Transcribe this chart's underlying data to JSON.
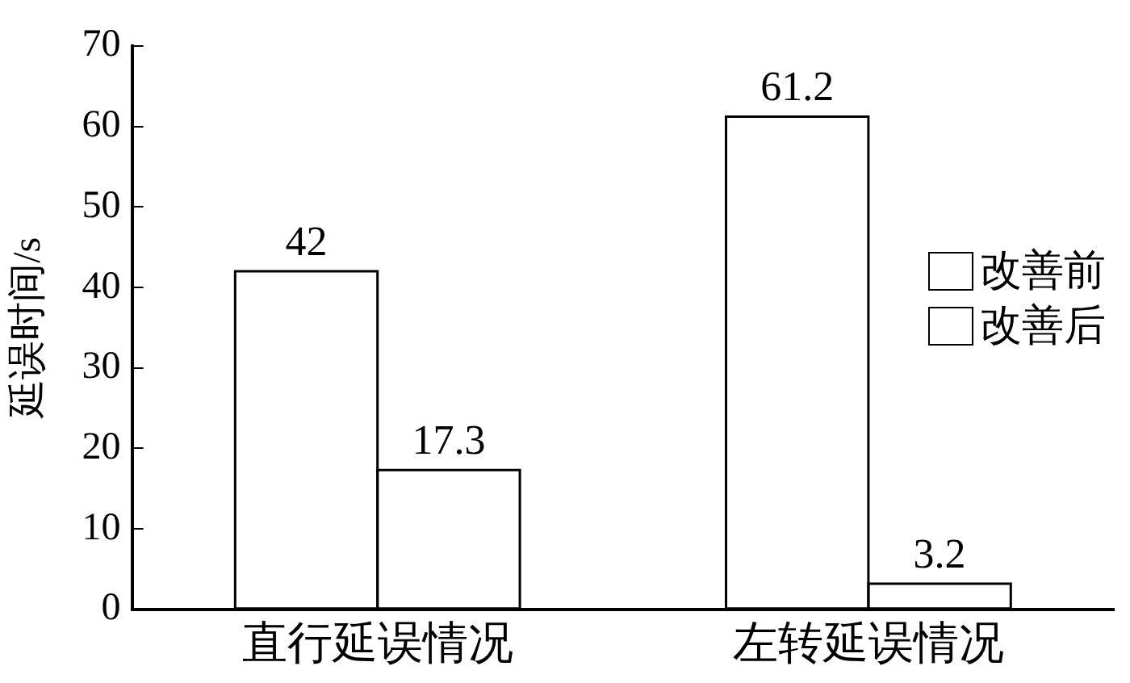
{
  "chart_data": {
    "type": "bar",
    "ylabel": "延误时间/s",
    "categories": [
      "直行延误情况",
      "左转延误情况"
    ],
    "series": [
      {
        "name": "改善前",
        "color": "#ffffff",
        "values": [
          42,
          61.2
        ]
      },
      {
        "name": "改善后",
        "color": "#ffffff",
        "values": [
          17.3,
          3.2
        ]
      }
    ],
    "ylim": [
      0,
      70
    ],
    "yticks": [
      0,
      10,
      20,
      30,
      40,
      50,
      60,
      70
    ],
    "grid": false,
    "legend": "right",
    "data_labels": true
  }
}
